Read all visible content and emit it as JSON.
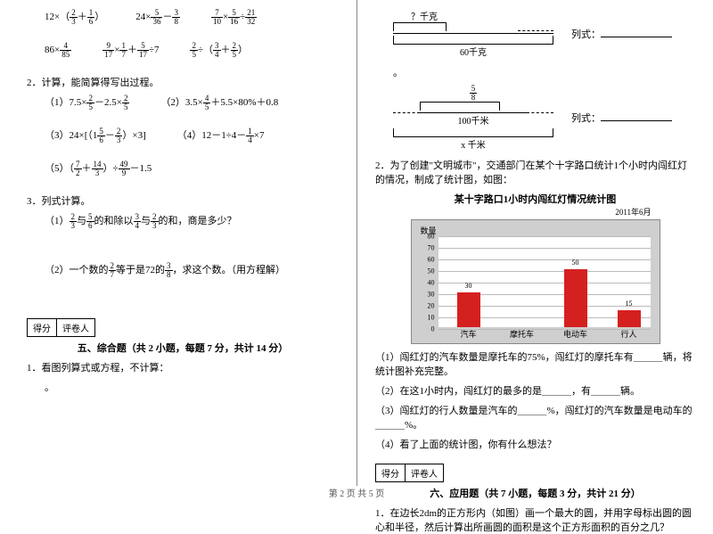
{
  "left": {
    "row1": {
      "e1": {
        "a": "12×",
        "f1n": "2",
        "f1d": "3",
        "mid": "（ ",
        "f2n": "1",
        "f2d": "6",
        "end": " ）",
        "op": "＋"
      },
      "e2": {
        "a": "24×",
        "f1n": "5",
        "f1d": "36",
        "op": "－",
        "f2n": "3",
        "f2d": "8"
      },
      "e3": {
        "f1n": "7",
        "f1d": "10",
        "op1": "×",
        "f2n": "5",
        "f2d": "16",
        "op2": "÷",
        "f3n": "21",
        "f3d": "32"
      }
    },
    "row2": {
      "e1": {
        "a": "86×",
        "f1n": "4",
        "f1d": "85"
      },
      "e2": {
        "f1n": "9",
        "f1d": "17",
        "op1": "×",
        "f2n": "1",
        "f2d": "7",
        "op2": "＋",
        "f3n": "5",
        "f3d": "17",
        "op3": "÷7"
      },
      "e3": {
        "f1n": "2",
        "f1d": "5",
        "op1": "÷（",
        "f2n": "3",
        "f2d": "4",
        "op2": "＋",
        "f3n": "2",
        "f3d": "5",
        "end": "）"
      }
    },
    "q2": "2．计算，能简算得写出过程。",
    "q2items": {
      "i1": {
        "label": "（1）7.5×",
        "f1n": "2",
        "f1d": "5",
        "mid": "－2.5×",
        "f2n": "2",
        "f2d": "5"
      },
      "i2": {
        "label": "（2）",
        "pre": "3.5×",
        "f1n": "4",
        "f1d": "5",
        "mid": "＋5.5×80%＋0.8"
      },
      "i3": {
        "label": "（3）",
        "pre": "24×",
        "b1": "[（1",
        "f1n": "5",
        "f1d": "6",
        "op": "－",
        "f2n": "2",
        "f2d": "3",
        "b2": "）×3]"
      },
      "i4": {
        "label": "（4）12－1÷4－",
        "f1n": "1",
        "f1d": "4",
        "end": "×7"
      },
      "i5": {
        "label": "（5）",
        "b1": "（",
        "f1n": "7",
        "f1d": "2",
        "op": "＋",
        "f2n": "14",
        "f2d": "3",
        "b2": "）÷",
        "f3n": "49",
        "f3d": "9",
        "end": "－1.5"
      }
    },
    "q3": "3．列式计算。",
    "q3_1a": "（1）",
    "q3_1f1n": "2",
    "q3_1f1d": "3",
    "q3_1mid": "与",
    "q3_1f2n": "5",
    "q3_1f2d": "6",
    "q3_1mid2": "的和除以",
    "q3_1f3n": "3",
    "q3_1f3d": "4",
    "q3_1mid3": "与",
    "q3_1f4n": "2",
    "q3_1f4d": "3",
    "q3_1end": "的和，商是多少？",
    "q3_2a": "（2）一个数的",
    "q3_2f1n": "2",
    "q3_2f1d": "7",
    "q3_2mid": "等于是72的",
    "q3_2f2n": "3",
    "q3_2f2d": "8",
    "q3_2end": "，求这个数。（用方程解）",
    "score1": "得分",
    "score2": "评卷人",
    "sec5": "五、综合题（共 2 小题，每题 7 分，共计 14 分）",
    "sec5_1": "1．看图列算式或方程，不计算："
  },
  "right": {
    "d1_top": "？千克",
    "d1_bottom": "60千克",
    "d1_formula": "列式：",
    "dot": "。",
    "d2_topn": "5",
    "d2_topd": "8",
    "d2_mid": "100千米",
    "d2_bottom": "x 千米",
    "d2_formula": "列式：",
    "q2": "2．为了创建\"文明城市\"，交通部门在某个十字路口统计1个小时内闯红灯的情况，制成了统计图，如图：",
    "chart": {
      "title": "某十字路口1小时内闯红灯情况统计图",
      "sub": "2011年6月",
      "ylabel": "数量",
      "ymax": 80,
      "ytick_step": 10,
      "categories": [
        "汽车",
        "摩托车",
        "电动车",
        "行人"
      ],
      "values": [
        30,
        null,
        50,
        15
      ],
      "bar_color": "#d52020",
      "grid_color": "#bbbbbb",
      "background": "#cfcfcf",
      "plot_background": "#ffffff"
    },
    "c1": "（1）闯红灯的汽车数量是摩托车的75%，闯红灯的摩托车有＿＿＿辆，将统计图补充完整。",
    "c2": "（2）在这1小时内，闯红灯的最多的是＿＿＿，有＿＿＿辆。",
    "c3": "（3）闯红灯的行人数量是汽车的＿＿＿%，闯红灯的汽车数量是电动车的＿＿＿%。",
    "c4": "（4）看了上面的统计图，你有什么想法？",
    "sec6": "六、应用题（共 7 小题，每题 3 分，共计 21 分）",
    "sec6_1": "1．在边长2dm的正方形内（如图）画一个最大的圆，并用字母标出圆的圆心和半径，然后计算出所画圆的面积是这个正方形面积的百分之几？"
  },
  "footer": "第 2 页  共 5 页"
}
